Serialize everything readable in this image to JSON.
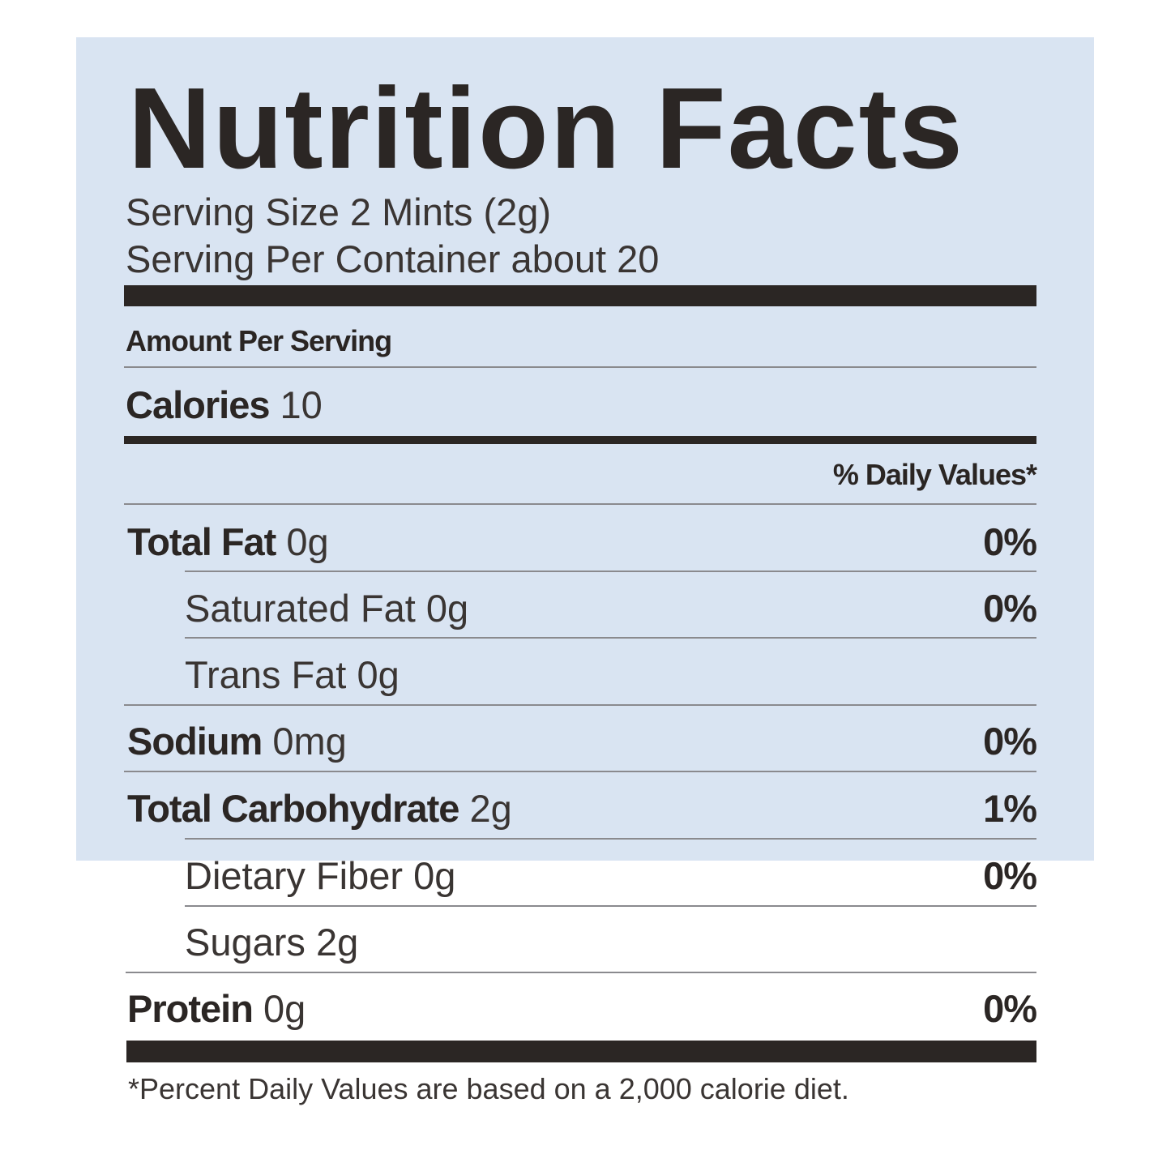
{
  "title": "Nutrition Facts",
  "serving_size": "Serving Size 2 Mints  (2g)",
  "servings_per_container": "Serving Per Container about 20",
  "amount_per_serving": "Amount Per Serving",
  "calories": {
    "label": "Calories",
    "value": "10"
  },
  "daily_values_header": "% Daily Values*",
  "nutrients": [
    {
      "label": "Total Fat",
      "amount": "0g",
      "dv": "0%"
    },
    {
      "label": "Saturated Fat",
      "amount": "0g",
      "dv": "0%"
    },
    {
      "label": "Trans Fat",
      "amount": "0g",
      "dv": ""
    },
    {
      "label": "Sodium",
      "amount": "0mg",
      "dv": "0%"
    },
    {
      "label": "Total Carbohydrate",
      "amount": "2g",
      "dv": "1%"
    },
    {
      "label": "Dietary Fiber",
      "amount": "0g",
      "dv": "0%"
    },
    {
      "label": "Sugars",
      "amount": "2g",
      "dv": ""
    },
    {
      "label": "Protein",
      "amount": "0g",
      "dv": "0%"
    }
  ],
  "footnote": "*Percent Daily Values are based on a 2,000 calorie diet.",
  "colors": {
    "background": "#d9e4f2",
    "ink": "#2b2624"
  }
}
